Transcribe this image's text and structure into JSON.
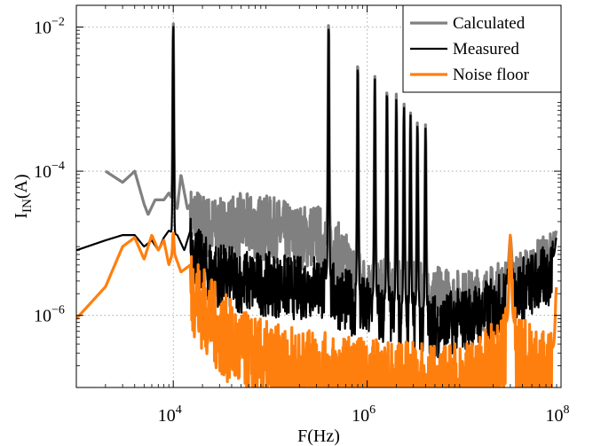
{
  "chart_data": {
    "type": "line",
    "title": "",
    "xlabel": "F(Hz)",
    "ylabel_main": "I",
    "ylabel_sub": "IN",
    "ylabel_tail": "(A)",
    "xscale": "log",
    "yscale": "log",
    "xlim": [
      1000,
      100000000
    ],
    "ylim": [
      1e-07,
      0.02
    ],
    "grid": true,
    "legend_position": "top-right",
    "x_ticks": [
      {
        "value": 10000,
        "base": "10",
        "exp": "4"
      },
      {
        "value": 1000000,
        "base": "10",
        "exp": "6"
      },
      {
        "value": 100000000,
        "base": "10",
        "exp": "8"
      }
    ],
    "y_ticks": [
      {
        "value": 0.01,
        "base": "10",
        "exp": "−2"
      },
      {
        "value": 0.0001,
        "base": "10",
        "exp": "−4"
      },
      {
        "value": 1e-06,
        "base": "10",
        "exp": "−6"
      }
    ],
    "series": [
      {
        "name": "Calculated",
        "color": "#808080",
        "width": 3.2,
        "base": [
          [
            2000,
            0.0001
          ],
          [
            3000,
            7e-05
          ],
          [
            4000,
            0.0001
          ],
          [
            5000,
            3.5e-05
          ],
          [
            5500,
            2.5e-05
          ],
          [
            6500,
            4e-05
          ],
          [
            8000,
            4e-05
          ],
          [
            9000,
            5e-05
          ],
          [
            11000,
            3e-05
          ],
          [
            12000,
            9e-05
          ],
          [
            14000,
            3e-05
          ],
          [
            16000,
            4e-05
          ],
          [
            20000,
            3e-05
          ],
          [
            30000,
            2.5e-05
          ],
          [
            50000,
            3e-05
          ],
          [
            100000,
            2.7e-05
          ],
          [
            200000,
            2e-05
          ],
          [
            300000,
            2.2e-05
          ],
          [
            500000,
            1.2e-05
          ],
          [
            800000,
            5e-06
          ],
          [
            1000000,
            4e-06
          ],
          [
            2000000,
            3.5e-06
          ],
          [
            5000000,
            3e-06
          ],
          [
            10000000,
            2.5e-06
          ],
          [
            20000000,
            3e-06
          ],
          [
            40000000,
            5e-06
          ],
          [
            60000000,
            7e-06
          ],
          [
            90000000,
            1e-05
          ]
        ],
        "peaks": [
          [
            10000,
            0.012
          ],
          [
            400000,
            0.013
          ],
          [
            800000,
            0.0035
          ],
          [
            1200000,
            0.0022
          ],
          [
            1600000,
            0.0015
          ],
          [
            2000000,
            0.0012
          ],
          [
            2400000,
            0.0009
          ],
          [
            2800000,
            0.00065
          ],
          [
            3300000,
            0.0005
          ],
          [
            4000000,
            0.00045
          ],
          [
            30000000,
            1.2e-05
          ],
          [
            90000000,
            1.5e-05
          ]
        ]
      },
      {
        "name": "Measured",
        "color": "#000000",
        "width": 2.2,
        "base": [
          [
            1000,
            8e-06
          ],
          [
            2000,
            1.1e-05
          ],
          [
            3000,
            1.3e-05
          ],
          [
            4000,
            1.3e-05
          ],
          [
            5000,
            9e-06
          ],
          [
            6000,
            1.1e-05
          ],
          [
            7000,
            8e-06
          ],
          [
            8000,
            1.2e-05
          ],
          [
            9000,
            1.5e-05
          ],
          [
            11000,
            1.3e-05
          ],
          [
            13000,
            8e-06
          ],
          [
            15000,
            1.5e-05
          ],
          [
            20000,
            8e-06
          ],
          [
            30000,
            6e-06
          ],
          [
            50000,
            5e-06
          ],
          [
            100000,
            4.5e-06
          ],
          [
            200000,
            4e-06
          ],
          [
            300000,
            4.5e-06
          ],
          [
            500000,
            3e-06
          ],
          [
            1000000,
            2e-06
          ],
          [
            2000000,
            1.5e-06
          ],
          [
            5000000,
            1.2e-06
          ],
          [
            10000000,
            1.5e-06
          ],
          [
            20000000,
            2e-06
          ],
          [
            40000000,
            4e-06
          ],
          [
            60000000,
            5e-06
          ],
          [
            90000000,
            7e-06
          ]
        ],
        "peaks": [
          [
            10000,
            0.011
          ],
          [
            400000,
            0.012
          ],
          [
            800000,
            0.0032
          ],
          [
            1200000,
            0.002
          ],
          [
            1600000,
            0.0014
          ],
          [
            2000000,
            0.001
          ],
          [
            2400000,
            0.0008
          ],
          [
            2800000,
            0.0006
          ],
          [
            3300000,
            0.00045
          ],
          [
            4000000,
            0.0004
          ],
          [
            30000000,
            1e-05
          ],
          [
            90000000,
            1.2e-05
          ]
        ]
      },
      {
        "name": "Noise floor",
        "color": "#ff7f0e",
        "width": 3.2,
        "base": [
          [
            1000,
            9e-07
          ],
          [
            2000,
            2.5e-06
          ],
          [
            3000,
            9e-06
          ],
          [
            4000,
            1.2e-05
          ],
          [
            5000,
            6e-06
          ],
          [
            6000,
            1.3e-05
          ],
          [
            7000,
            8e-06
          ],
          [
            8000,
            1.1e-05
          ],
          [
            9000,
            5e-06
          ],
          [
            10000,
            8e-06
          ],
          [
            12000,
            4e-06
          ],
          [
            15000,
            5e-06
          ],
          [
            20000,
            2.5e-06
          ],
          [
            30000,
            1.2e-06
          ],
          [
            50000,
            6e-07
          ],
          [
            100000,
            4e-07
          ],
          [
            300000,
            3e-07
          ],
          [
            1000000,
            2.5e-07
          ],
          [
            5000000,
            2e-07
          ],
          [
            10000000,
            2.2e-07
          ],
          [
            20000000,
            4e-07
          ],
          [
            30000000,
            1e-06
          ],
          [
            40000000,
            5e-07
          ],
          [
            70000000,
            3e-07
          ],
          [
            90000000,
            4e-07
          ]
        ],
        "peaks": [
          [
            10000,
            1.4e-05
          ],
          [
            30000000,
            1.3e-05
          ],
          [
            90000000,
            2.5e-06
          ]
        ]
      }
    ]
  }
}
